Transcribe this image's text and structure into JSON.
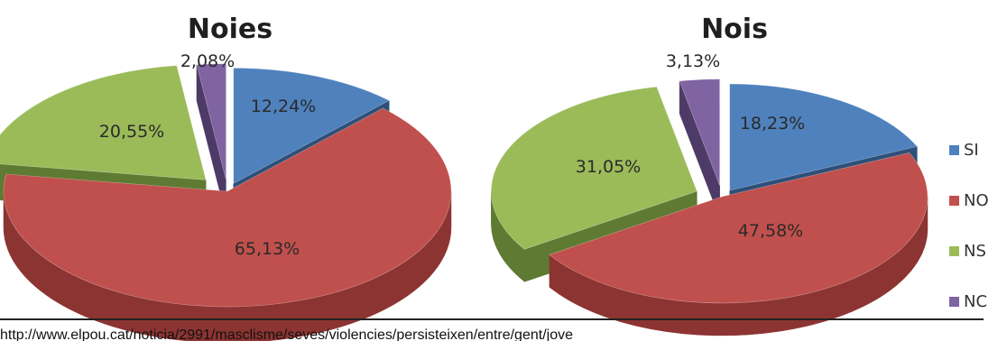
{
  "chart_data": [
    {
      "type": "pie",
      "title": "Noies",
      "categories": [
        "SI",
        "NO",
        "NS",
        "NC"
      ],
      "values": [
        12.24,
        65.13,
        20.55,
        2.08
      ],
      "labels": [
        "12,24%",
        "65,13%",
        "20,55%",
        "2,08%"
      ],
      "exploded": true,
      "three_d": true
    },
    {
      "type": "pie",
      "title": "Nois",
      "categories": [
        "SI",
        "NO",
        "NS",
        "NC"
      ],
      "values": [
        18.23,
        47.58,
        31.05,
        3.13
      ],
      "labels": [
        "18,23%",
        "47,58%",
        "31,05%",
        "3,13%"
      ],
      "exploded": true,
      "three_d": true
    }
  ],
  "legend": {
    "placement": "right",
    "items": [
      {
        "label": "SI",
        "color": "#4f81bd"
      },
      {
        "label": "NO",
        "color": "#c0504d"
      },
      {
        "label": "NS",
        "color": "#9bbb59"
      },
      {
        "label": "NC",
        "color": "#8064a2"
      }
    ]
  },
  "series_colors": {
    "SI": {
      "top": "#4f81bd",
      "side": "#2e4f78"
    },
    "NO": {
      "top": "#c0504d",
      "side": "#8c3432"
    },
    "NS": {
      "top": "#9bbb59",
      "side": "#5f7a32"
    },
    "NC": {
      "top": "#8064a2",
      "side": "#4d3a66"
    }
  },
  "source": "http://www.elpou.cat/noticia/2991/masclisme/seves/violencies/persisteixen/entre/gent/jove"
}
